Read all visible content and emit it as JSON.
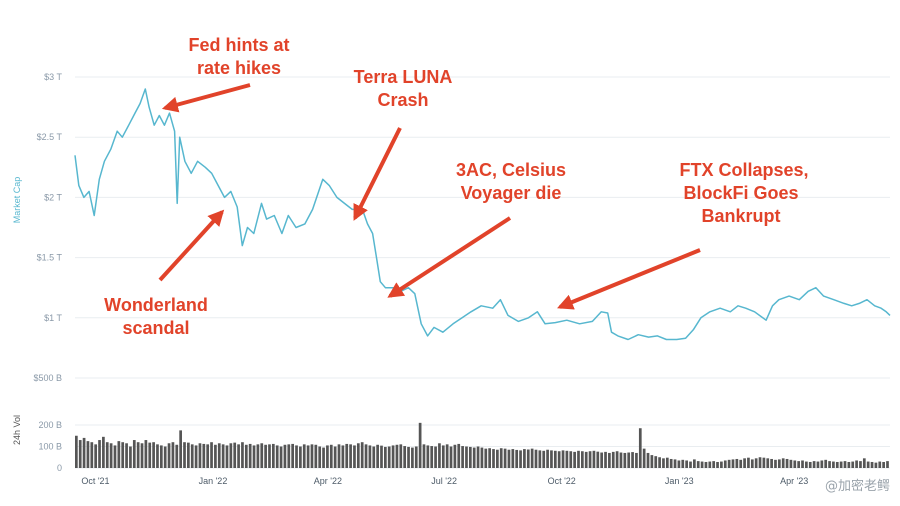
{
  "chart_data": [
    {
      "type": "line",
      "title": "",
      "ylabel": "Market Cap",
      "xlabel": "",
      "ylim": [
        0,
        3.0
      ],
      "y_unit": "trillion USD",
      "ytick_values": [
        0.5,
        1.0,
        1.5,
        2.0,
        2.5,
        3.0
      ],
      "ytick_labels": [
        "$500 B",
        "$1 T",
        "$1.5 T",
        "$2 T",
        "$2.5 T",
        "$3 T"
      ],
      "xlim": [
        "2021-09-15",
        "2023-06-15"
      ],
      "xtick_values": [
        "2021-10-01",
        "2022-01-01",
        "2022-04-01",
        "2022-07-01",
        "2022-10-01",
        "2023-01-01",
        "2023-04-01"
      ],
      "xtick_labels": [
        "Oct '21",
        "Jan '22",
        "Apr '22",
        "Jul '22",
        "Oct '22",
        "Jan '23",
        "Apr '23"
      ],
      "grid": true,
      "color": "#57b7cf",
      "series": [
        {
          "points": [
            [
              "2021-09-15",
              2.35
            ],
            [
              "2021-09-18",
              2.1
            ],
            [
              "2021-09-22",
              2.0
            ],
            [
              "2021-09-26",
              2.05
            ],
            [
              "2021-09-30",
              1.85
            ],
            [
              "2021-10-04",
              2.15
            ],
            [
              "2021-10-08",
              2.3
            ],
            [
              "2021-10-13",
              2.4
            ],
            [
              "2021-10-18",
              2.55
            ],
            [
              "2021-10-22",
              2.5
            ],
            [
              "2021-10-27",
              2.6
            ],
            [
              "2021-11-01",
              2.7
            ],
            [
              "2021-11-05",
              2.78
            ],
            [
              "2021-11-09",
              2.9
            ],
            [
              "2021-11-12",
              2.75
            ],
            [
              "2021-11-16",
              2.6
            ],
            [
              "2021-11-20",
              2.68
            ],
            [
              "2021-11-24",
              2.6
            ],
            [
              "2021-11-28",
              2.7
            ],
            [
              "2021-12-02",
              2.55
            ],
            [
              "2021-12-04",
              1.95
            ],
            [
              "2021-12-06",
              2.5
            ],
            [
              "2021-12-10",
              2.3
            ],
            [
              "2021-12-15",
              2.2
            ],
            [
              "2021-12-20",
              2.3
            ],
            [
              "2021-12-26",
              2.25
            ],
            [
              "2021-12-31",
              2.2
            ],
            [
              "2022-01-05",
              2.1
            ],
            [
              "2022-01-10",
              2.0
            ],
            [
              "2022-01-15",
              2.05
            ],
            [
              "2022-01-20",
              1.92
            ],
            [
              "2022-01-24",
              1.6
            ],
            [
              "2022-01-28",
              1.75
            ],
            [
              "2022-02-02",
              1.7
            ],
            [
              "2022-02-08",
              1.95
            ],
            [
              "2022-02-12",
              1.82
            ],
            [
              "2022-02-18",
              1.85
            ],
            [
              "2022-02-24",
              1.7
            ],
            [
              "2022-03-01",
              1.85
            ],
            [
              "2022-03-07",
              1.75
            ],
            [
              "2022-03-14",
              1.78
            ],
            [
              "2022-03-20",
              1.9
            ],
            [
              "2022-03-28",
              2.15
            ],
            [
              "2022-04-02",
              2.1
            ],
            [
              "2022-04-08",
              2.0
            ],
            [
              "2022-04-14",
              1.95
            ],
            [
              "2022-04-20",
              1.9
            ],
            [
              "2022-04-28",
              1.9
            ],
            [
              "2022-05-02",
              1.78
            ],
            [
              "2022-05-06",
              1.7
            ],
            [
              "2022-05-09",
              1.5
            ],
            [
              "2022-05-12",
              1.3
            ],
            [
              "2022-05-16",
              1.25
            ],
            [
              "2022-05-22",
              1.25
            ],
            [
              "2022-05-28",
              1.22
            ],
            [
              "2022-06-03",
              1.25
            ],
            [
              "2022-06-08",
              1.2
            ],
            [
              "2022-06-13",
              0.95
            ],
            [
              "2022-06-18",
              0.85
            ],
            [
              "2022-06-23",
              0.92
            ],
            [
              "2022-06-30",
              0.88
            ],
            [
              "2022-07-08",
              0.95
            ],
            [
              "2022-07-15",
              1.0
            ],
            [
              "2022-07-22",
              1.05
            ],
            [
              "2022-07-30",
              1.1
            ],
            [
              "2022-08-08",
              1.08
            ],
            [
              "2022-08-14",
              1.15
            ],
            [
              "2022-08-20",
              1.02
            ],
            [
              "2022-08-28",
              0.97
            ],
            [
              "2022-09-05",
              1.0
            ],
            [
              "2022-09-12",
              1.05
            ],
            [
              "2022-09-18",
              0.95
            ],
            [
              "2022-09-26",
              0.96
            ],
            [
              "2022-10-05",
              0.98
            ],
            [
              "2022-10-15",
              0.95
            ],
            [
              "2022-10-25",
              0.97
            ],
            [
              "2022-11-01",
              1.05
            ],
            [
              "2022-11-06",
              1.04
            ],
            [
              "2022-11-09",
              0.88
            ],
            [
              "2022-11-14",
              0.85
            ],
            [
              "2022-11-22",
              0.82
            ],
            [
              "2022-11-30",
              0.86
            ],
            [
              "2022-12-08",
              0.84
            ],
            [
              "2022-12-15",
              0.85
            ],
            [
              "2022-12-22",
              0.82
            ],
            [
              "2022-12-30",
              0.82
            ],
            [
              "2023-01-06",
              0.83
            ],
            [
              "2023-01-12",
              0.9
            ],
            [
              "2023-01-18",
              1.0
            ],
            [
              "2023-01-25",
              1.05
            ],
            [
              "2023-02-02",
              1.08
            ],
            [
              "2023-02-10",
              1.05
            ],
            [
              "2023-02-16",
              1.1
            ],
            [
              "2023-02-22",
              1.08
            ],
            [
              "2023-03-01",
              1.05
            ],
            [
              "2023-03-10",
              0.98
            ],
            [
              "2023-03-15",
              1.1
            ],
            [
              "2023-03-20",
              1.15
            ],
            [
              "2023-03-28",
              1.18
            ],
            [
              "2023-04-05",
              1.15
            ],
            [
              "2023-04-12",
              1.22
            ],
            [
              "2023-04-18",
              1.25
            ],
            [
              "2023-04-24",
              1.18
            ],
            [
              "2023-05-02",
              1.15
            ],
            [
              "2023-05-10",
              1.12
            ],
            [
              "2023-05-16",
              1.1
            ],
            [
              "2023-05-22",
              1.12
            ],
            [
              "2023-05-28",
              1.15
            ],
            [
              "2023-06-03",
              1.1
            ],
            [
              "2023-06-08",
              1.08
            ],
            [
              "2023-06-12",
              1.05
            ],
            [
              "2023-06-15",
              1.02
            ]
          ]
        }
      ]
    },
    {
      "type": "bar",
      "title": "",
      "ylabel": "24h Vol",
      "ylim": [
        0,
        250
      ],
      "y_unit": "billion USD",
      "ytick_values": [
        0,
        100,
        200
      ],
      "ytick_labels": [
        "0",
        "100 B",
        "200 B"
      ],
      "color": "#555555",
      "series": [
        {
          "values": [
            150,
            130,
            140,
            125,
            120,
            110,
            130,
            145,
            120,
            115,
            105,
            125,
            120,
            115,
            100,
            130,
            120,
            115,
            130,
            118,
            120,
            110,
            105,
            100,
            115,
            120,
            108,
            175,
            120,
            118,
            110,
            105,
            115,
            112,
            110,
            120,
            108,
            115,
            110,
            105,
            115,
            118,
            110,
            120,
            108,
            112,
            105,
            110,
            115,
            108,
            110,
            112,
            105,
            100,
            108,
            110,
            112,
            105,
            100,
            110,
            105,
            110,
            108,
            100,
            95,
            105,
            108,
            100,
            110,
            105,
            112,
            110,
            105,
            115,
            120,
            110,
            105,
            100,
            108,
            104,
            98,
            100,
            105,
            108,
            110,
            102,
            98,
            95,
            100,
            210,
            110,
            105,
            102,
            100,
            115,
            105,
            110,
            100,
            108,
            112,
            102,
            100,
            98,
            95,
            100,
            95,
            90,
            92,
            88,
            85,
            92,
            90,
            85,
            88,
            84,
            82,
            88,
            86,
            90,
            85,
            82,
            80,
            85,
            82,
            80,
            78,
            82,
            80,
            78,
            75,
            80,
            78,
            75,
            78,
            80,
            76,
            72,
            75,
            70,
            75,
            78,
            72,
            70,
            72,
            74,
            70,
            185,
            90,
            70,
            60,
            55,
            50,
            45,
            48,
            42,
            40,
            35,
            38,
            35,
            30,
            40,
            32,
            30,
            28,
            30,
            32,
            28,
            30,
            35,
            38,
            40,
            42,
            38,
            45,
            48,
            40,
            45,
            50,
            48,
            45,
            42,
            38,
            40,
            45,
            42,
            38,
            35,
            32,
            35,
            30,
            28,
            32,
            30,
            35,
            38,
            32,
            30,
            28,
            30,
            32,
            28,
            30,
            35,
            32,
            45,
            30,
            28,
            25,
            30,
            28,
            32
          ]
        }
      ]
    }
  ],
  "annotations": [
    {
      "lines": [
        "Fed hints at",
        "rate hikes"
      ]
    },
    {
      "lines": [
        "Terra LUNA",
        "Crash"
      ]
    },
    {
      "lines": [
        "3AC, Celsius",
        "Voyager die"
      ]
    },
    {
      "lines": [
        "FTX Collapses,",
        "BlockFi Goes",
        "Bankrupt"
      ]
    },
    {
      "lines": [
        "Wonderland",
        "scandal"
      ]
    }
  ],
  "annotation_color": "#e1432a",
  "watermark": "@加密老鳄"
}
